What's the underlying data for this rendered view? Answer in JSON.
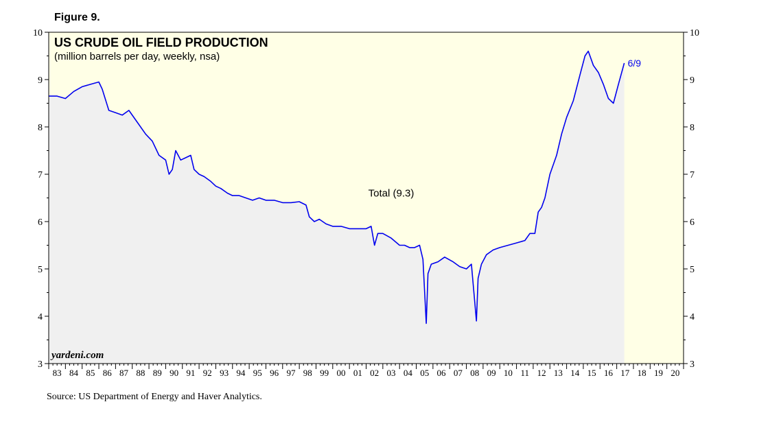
{
  "figure_label": "Figure 9.",
  "source": "Source: US Department of Energy and Haver Analytics.",
  "watermark": "yardeni.com",
  "colors": {
    "plot_background": "#FFFFE6",
    "area_fill": "#F0F0F0",
    "line": "#0000EE",
    "last_label": "#0000EE",
    "axis": "#000000"
  },
  "chart_data": {
    "type": "line",
    "title": "US CRUDE OIL FIELD PRODUCTION",
    "subtitle": "(million barrels per day, weekly, nsa)",
    "ylim": [
      3,
      10
    ],
    "y_ticks": [
      3,
      4,
      5,
      6,
      7,
      8,
      9,
      10
    ],
    "x_range": [
      1983,
      2021
    ],
    "x_tick_labels": [
      "83",
      "84",
      "85",
      "86",
      "87",
      "88",
      "89",
      "90",
      "91",
      "92",
      "93",
      "94",
      "95",
      "96",
      "97",
      "98",
      "99",
      "00",
      "01",
      "02",
      "03",
      "04",
      "05",
      "06",
      "07",
      "08",
      "09",
      "10",
      "11",
      "12",
      "13",
      "14",
      "15",
      "16",
      "17",
      "18",
      "19",
      "20"
    ],
    "series_label": "Total (9.3)",
    "series_label_position": [
      2003.5,
      6.6
    ],
    "last_point_label": "6/9",
    "series": [
      {
        "name": "Total",
        "x": [
          1983.0,
          1983.5,
          1984.0,
          1984.5,
          1985.0,
          1985.5,
          1986.0,
          1986.2,
          1986.6,
          1987.0,
          1987.4,
          1987.8,
          1988.3,
          1988.8,
          1989.2,
          1989.6,
          1990.0,
          1990.2,
          1990.4,
          1990.6,
          1990.9,
          1991.2,
          1991.5,
          1991.7,
          1992.0,
          1992.3,
          1992.7,
          1993.0,
          1993.3,
          1993.7,
          1994.0,
          1994.4,
          1994.8,
          1995.2,
          1995.6,
          1996.0,
          1996.5,
          1997.0,
          1997.5,
          1998.0,
          1998.4,
          1998.6,
          1998.9,
          1999.2,
          1999.6,
          2000.0,
          2000.5,
          2001.0,
          2001.5,
          2002.0,
          2002.3,
          2002.5,
          2002.7,
          2003.0,
          2003.5,
          2004.0,
          2004.3,
          2004.6,
          2004.9,
          2005.2,
          2005.4,
          2005.6,
          2005.7,
          2005.9,
          2006.3,
          2006.7,
          2007.2,
          2007.6,
          2008.0,
          2008.3,
          2008.6,
          2008.7,
          2008.9,
          2009.2,
          2009.6,
          2010.0,
          2010.5,
          2011.0,
          2011.5,
          2011.8,
          2012.1,
          2012.3,
          2012.5,
          2012.7,
          2013.0,
          2013.4,
          2013.7,
          2014.0,
          2014.4,
          2014.8,
          2015.1,
          2015.3,
          2015.6,
          2015.9,
          2016.2,
          2016.5,
          2016.8,
          2017.1,
          2017.45
        ],
        "values": [
          8.65,
          8.65,
          8.6,
          8.75,
          8.85,
          8.9,
          8.95,
          8.8,
          8.35,
          8.3,
          8.25,
          8.35,
          8.1,
          7.85,
          7.7,
          7.4,
          7.3,
          7.0,
          7.1,
          7.5,
          7.3,
          7.35,
          7.4,
          7.1,
          7.0,
          6.95,
          6.85,
          6.75,
          6.7,
          6.6,
          6.55,
          6.55,
          6.5,
          6.45,
          6.5,
          6.45,
          6.45,
          6.4,
          6.4,
          6.42,
          6.35,
          6.1,
          6.0,
          6.05,
          5.95,
          5.9,
          5.9,
          5.85,
          5.85,
          5.85,
          5.9,
          5.5,
          5.75,
          5.75,
          5.65,
          5.5,
          5.5,
          5.45,
          5.45,
          5.5,
          5.2,
          3.85,
          4.9,
          5.1,
          5.15,
          5.25,
          5.15,
          5.05,
          5.0,
          5.1,
          3.9,
          4.8,
          5.1,
          5.3,
          5.4,
          5.45,
          5.5,
          5.55,
          5.6,
          5.75,
          5.75,
          6.2,
          6.3,
          6.5,
          7.0,
          7.4,
          7.85,
          8.2,
          8.55,
          9.1,
          9.5,
          9.6,
          9.3,
          9.15,
          8.9,
          8.6,
          8.5,
          8.9,
          9.35
        ]
      }
    ]
  }
}
